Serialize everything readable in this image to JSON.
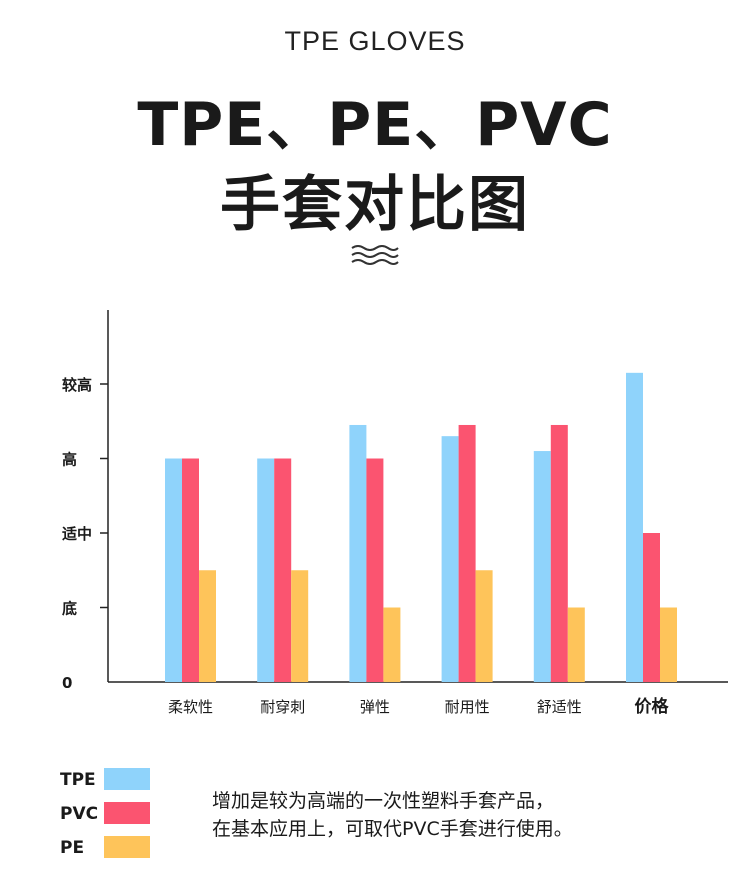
{
  "header": {
    "eyebrow": "TPE GLOVES",
    "title_line1": "TPE、PE、PVC",
    "title_line2": "手套对比图",
    "wave_icon": "wave-icon"
  },
  "chart_data": {
    "type": "bar",
    "title": "",
    "xlabel": "",
    "ylabel": "",
    "y_tick_labels": [
      "0",
      "底",
      "适中",
      "高",
      "较高"
    ],
    "y_tick_values": [
      0,
      1,
      2,
      3,
      4
    ],
    "ylim": [
      0,
      5.0
    ],
    "grid": false,
    "categories": [
      "柔软性",
      "耐穿刺",
      "弹性",
      "耐用性",
      "舒适性",
      "价格"
    ],
    "category_bold": [
      false,
      false,
      false,
      false,
      false,
      true
    ],
    "series": [
      {
        "name": "TPE",
        "color": "#8fd3fb",
        "values": [
          3.0,
          3.0,
          3.45,
          3.3,
          3.1,
          4.15
        ]
      },
      {
        "name": "PVC",
        "color": "#fb5470",
        "values": [
          3.0,
          3.0,
          3.0,
          3.45,
          3.45,
          2.0
        ]
      },
      {
        "name": "PE",
        "color": "#fec45a",
        "values": [
          1.5,
          1.5,
          1.0,
          1.5,
          1.0,
          1.0
        ]
      }
    ],
    "legend_position": "bottom-left"
  },
  "legend": [
    {
      "label": "TPE",
      "color": "#8fd3fb"
    },
    {
      "label": "PVC",
      "color": "#fb5470"
    },
    {
      "label": "PE",
      "color": "#fec45a"
    }
  ],
  "note": {
    "line1": "增加是较为高端的一次性塑料手套产品，",
    "line2": "在基本应用上，可取代PVC手套进行使用。"
  }
}
